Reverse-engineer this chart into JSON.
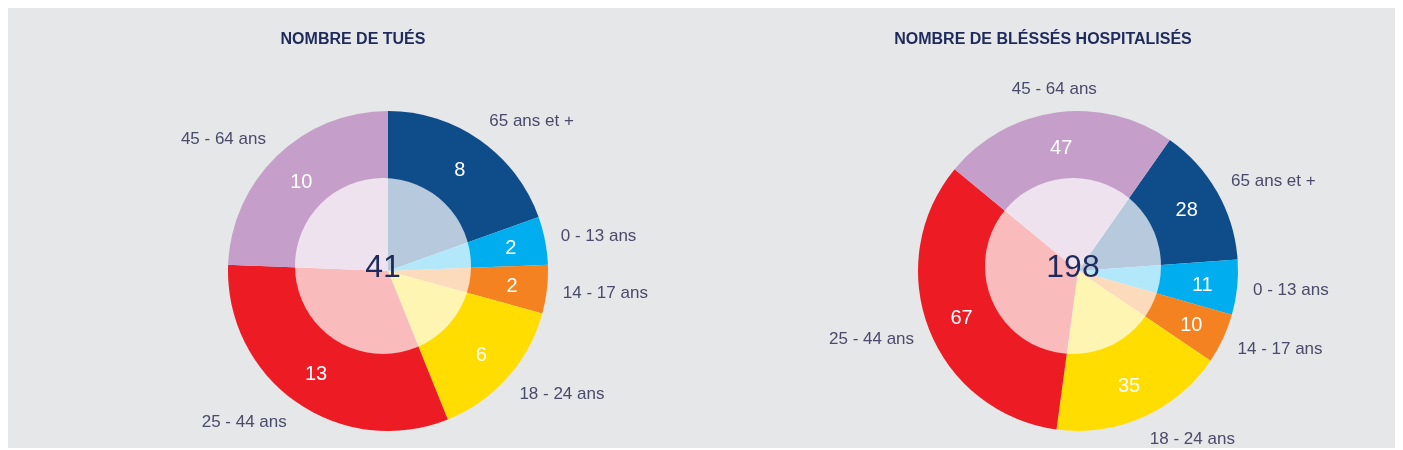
{
  "chart_data": [
    {
      "type": "pie",
      "title": "NOMBRE DE TUÉS",
      "categories": [
        "65 ans et +",
        "0 - 13 ans",
        "14 - 17 ans",
        "18 - 24 ans",
        "25 - 44 ans",
        "45 - 64 ans"
      ],
      "values": [
        8,
        2,
        2,
        6,
        13,
        10
      ],
      "colors": [
        "#0e4c8a",
        "#00aeef",
        "#f58220",
        "#ffdd00",
        "#ed1c24",
        "#c59fc9"
      ],
      "data_labels": true,
      "legend": false,
      "annotations": [
        "41"
      ]
    },
    {
      "type": "pie",
      "title": "NOMBRE DE BLÉSSÉS HOSPITALISÉS",
      "categories": [
        "65 ans et +",
        "0 - 13 ans",
        "14 - 17 ans",
        "18 - 24 ans",
        "25 - 44 ans",
        "45 - 64 ans"
      ],
      "values": [
        28,
        11,
        10,
        35,
        67,
        47
      ],
      "colors": [
        "#0e4c8a",
        "#00aeef",
        "#f58220",
        "#ffdd00",
        "#ed1c24",
        "#c59fc9"
      ],
      "data_labels": true,
      "legend": false,
      "annotations": [
        "198"
      ]
    }
  ]
}
